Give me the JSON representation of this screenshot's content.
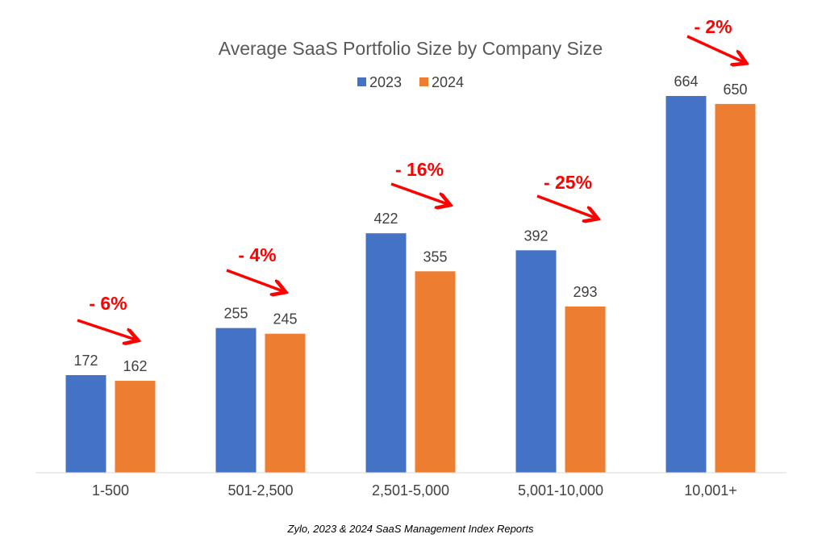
{
  "chart_data": {
    "type": "bar",
    "title": "Average SaaS Portfolio Size by Company Size",
    "categories": [
      "1-500",
      "501-2,500",
      "2,501-5,000",
      "5,001-10,000",
      "10,001+"
    ],
    "series": [
      {
        "name": "2023",
        "values": [
          172,
          255,
          422,
          392,
          664
        ],
        "color": "#4472c4"
      },
      {
        "name": "2024",
        "values": [
          162,
          245,
          355,
          293,
          650
        ],
        "color": "#ed7d31"
      }
    ],
    "annotations": [
      "- 6%",
      "- 4%",
      "- 16%",
      "- 25%",
      "- 2%"
    ],
    "annotation_color": "#ff0000",
    "legend": "top",
    "grid": false,
    "xlabel": "",
    "ylabel": "",
    "ylim": [
      0,
      664
    ],
    "source": "Zylo, 2023 & 2024 SaaS Management Index Reports"
  }
}
